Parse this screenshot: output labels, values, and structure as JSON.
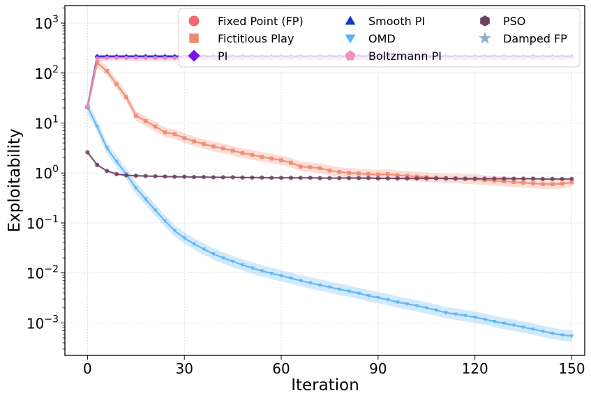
{
  "chart_data": {
    "type": "line",
    "title": "",
    "xlabel": "Iteration",
    "ylabel": "Exploitability",
    "xlim": [
      -7,
      154
    ],
    "ylim_log10": [
      -3.65,
      3.35
    ],
    "yscale": "log",
    "grid": true,
    "legend_position": "top-right",
    "x_ticks": [
      0,
      30,
      60,
      90,
      120,
      150
    ],
    "x_tick_labels": [
      "0",
      "30",
      "60",
      "90",
      "120",
      "150"
    ],
    "y_ticks_log10": [
      -3,
      -2,
      -1,
      0,
      1,
      2,
      3
    ],
    "y_tick_bases": [
      "10",
      "10",
      "10",
      "10",
      "10",
      "10",
      "10"
    ],
    "y_tick_exponents": [
      "−3",
      "−2",
      "−1",
      "0",
      "1",
      "2",
      "3"
    ],
    "series": [
      {
        "name": "Fixed Point (FP)",
        "color": "#f4676c",
        "marker": "circle",
        "band": false,
        "x": [
          0,
          3,
          150
        ],
        "y": [
          21,
          210,
          210
        ]
      },
      {
        "name": "Fictitious Play",
        "color": "#ef8a70",
        "marker": "square",
        "band": true,
        "band_factor": 1.25,
        "x": [
          0,
          3,
          6,
          9,
          12,
          15,
          18,
          21,
          24,
          27,
          30,
          33,
          36,
          39,
          42,
          45,
          48,
          51,
          54,
          57,
          60,
          63,
          66,
          69,
          72,
          75,
          78,
          81,
          84,
          87,
          90,
          93,
          96,
          99,
          102,
          105,
          108,
          111,
          114,
          117,
          120,
          123,
          126,
          129,
          132,
          135,
          138,
          141,
          144,
          147,
          150
        ],
        "y": [
          21,
          160,
          110,
          60,
          33,
          14,
          11,
          8.5,
          6.5,
          6,
          5,
          4.3,
          3.8,
          3.4,
          3.1,
          2.8,
          2.5,
          2.3,
          2.1,
          1.95,
          1.8,
          1.6,
          1.35,
          1.3,
          1.25,
          1.12,
          1.05,
          1.0,
          0.98,
          0.95,
          0.93,
          0.95,
          0.9,
          0.88,
          0.85,
          0.82,
          0.8,
          0.78,
          0.78,
          0.76,
          0.75,
          0.72,
          0.7,
          0.68,
          0.66,
          0.64,
          0.62,
          0.6,
          0.6,
          0.61,
          0.65
        ]
      },
      {
        "name": "PI",
        "color": "#7b16e8",
        "marker": "diamond",
        "band": false,
        "x": [
          0,
          3,
          150
        ],
        "y": [
          21,
          215,
          215
        ]
      },
      {
        "name": "Smooth PI",
        "color": "#1439c7",
        "marker": "triangle-up",
        "band": false,
        "x": [
          0,
          3,
          150
        ],
        "y": [
          21,
          218,
          218
        ]
      },
      {
        "name": "OMD",
        "color": "#5cb3f5",
        "marker": "triangle-down",
        "band": true,
        "band_factor": 1.3,
        "x": [
          0,
          3,
          6,
          9,
          12,
          15,
          18,
          21,
          24,
          27,
          30,
          33,
          36,
          39,
          42,
          45,
          48,
          51,
          54,
          57,
          60,
          63,
          66,
          69,
          72,
          75,
          78,
          81,
          84,
          87,
          90,
          93,
          96,
          99,
          102,
          105,
          108,
          111,
          114,
          117,
          120,
          123,
          126,
          129,
          132,
          135,
          138,
          141,
          144,
          147,
          150
        ],
        "y": [
          21,
          8.5,
          3.2,
          1.7,
          0.95,
          0.5,
          0.3,
          0.18,
          0.11,
          0.07,
          0.05,
          0.038,
          0.03,
          0.024,
          0.02,
          0.017,
          0.0145,
          0.0125,
          0.011,
          0.0098,
          0.0088,
          0.0079,
          0.007,
          0.0063,
          0.0057,
          0.0052,
          0.0047,
          0.0043,
          0.0039,
          0.0035,
          0.0032,
          0.0029,
          0.0026,
          0.0024,
          0.0022,
          0.002,
          0.0018,
          0.0016,
          0.0015,
          0.0014,
          0.0013,
          0.00118,
          0.00107,
          0.00098,
          0.0009,
          0.00082,
          0.00075,
          0.00068,
          0.00062,
          0.00057,
          0.00055
        ]
      },
      {
        "name": "Boltzmann PI",
        "color": "#f28fbd",
        "marker": "pentagon",
        "band": true,
        "band_factor": 1.15,
        "x": [
          0,
          3,
          6,
          9,
          12,
          15,
          18,
          21,
          24,
          27,
          30,
          33,
          36,
          39,
          42,
          45,
          48,
          51,
          54,
          57,
          60,
          63,
          66,
          69,
          72,
          75,
          78,
          81,
          84,
          87,
          90,
          93,
          96,
          99,
          102,
          105,
          108,
          111,
          114,
          117,
          120,
          123,
          126,
          129,
          132,
          135,
          138,
          141,
          144,
          147,
          150
        ],
        "y": [
          21,
          195,
          200,
          200,
          200,
          200,
          200,
          200,
          200,
          200,
          200,
          200,
          200,
          200,
          200,
          200,
          200,
          200,
          200,
          200,
          200,
          200,
          200,
          200,
          200,
          200,
          200,
          200,
          200,
          200,
          200,
          200,
          200,
          200,
          200,
          200,
          200,
          200,
          200,
          200,
          200,
          200,
          200,
          200,
          200,
          200,
          200,
          200,
          200,
          200,
          200
        ]
      },
      {
        "name": "PSO",
        "color": "#6e3f63",
        "marker": "hexagon",
        "band": false,
        "x": [
          0,
          3,
          6,
          9,
          12,
          15,
          18,
          21,
          24,
          27,
          30,
          33,
          36,
          39,
          42,
          45,
          48,
          51,
          54,
          57,
          60,
          63,
          66,
          69,
          72,
          75,
          78,
          81,
          84,
          87,
          90,
          93,
          96,
          99,
          102,
          105,
          108,
          111,
          114,
          117,
          120,
          123,
          126,
          129,
          132,
          135,
          138,
          141,
          144,
          147,
          150
        ],
        "y": [
          2.6,
          1.45,
          1.1,
          0.95,
          0.9,
          0.88,
          0.87,
          0.86,
          0.85,
          0.84,
          0.84,
          0.83,
          0.83,
          0.82,
          0.82,
          0.82,
          0.81,
          0.81,
          0.81,
          0.8,
          0.8,
          0.8,
          0.8,
          0.8,
          0.79,
          0.79,
          0.79,
          0.79,
          0.79,
          0.79,
          0.78,
          0.78,
          0.78,
          0.78,
          0.78,
          0.78,
          0.78,
          0.78,
          0.77,
          0.77,
          0.77,
          0.77,
          0.77,
          0.77,
          0.77,
          0.77,
          0.77,
          0.76,
          0.76,
          0.76,
          0.76
        ]
      },
      {
        "name": "Damped FP",
        "color": "#8fb3c1",
        "marker": "star",
        "band": false,
        "in_legend_only": true,
        "x": [],
        "y": []
      }
    ]
  }
}
